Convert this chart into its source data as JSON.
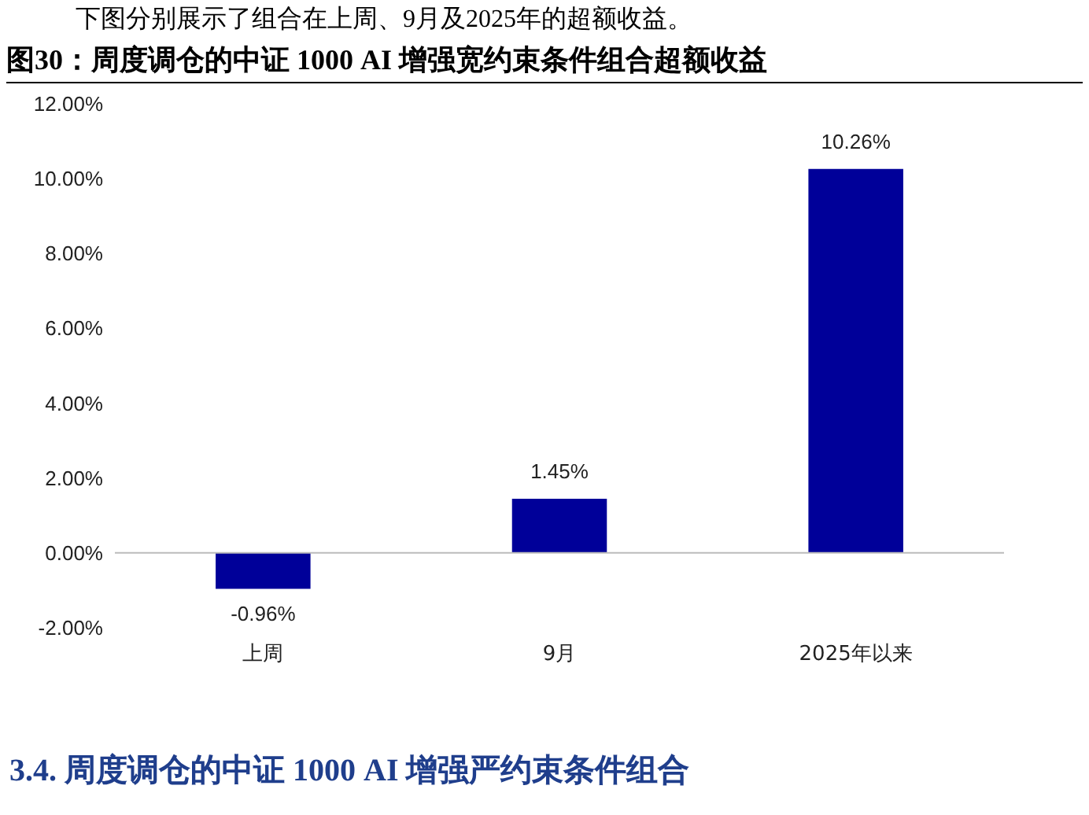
{
  "chart_data": {
    "type": "bar",
    "title": "图30：周度调仓的中证 1000 AI 增强宽约束条件组合超额收益",
    "categories": [
      "上周",
      "9月",
      "2025年以来"
    ],
    "values": [
      -0.96,
      1.45,
      10.26
    ],
    "value_labels": [
      "-0.96%",
      "1.45%",
      "10.26%"
    ],
    "color": "#000099",
    "ylim": [
      -2,
      12
    ],
    "yticks": [
      {
        "value": -2,
        "label": "-2.00%"
      },
      {
        "value": 0,
        "label": "0.00%"
      },
      {
        "value": 2,
        "label": "2.00%"
      },
      {
        "value": 4,
        "label": "4.00%"
      },
      {
        "value": 6,
        "label": "6.00%"
      },
      {
        "value": 8,
        "label": "8.00%"
      },
      {
        "value": 10,
        "label": "10.00%"
      },
      {
        "value": 12,
        "label": "12.00%"
      }
    ],
    "annotations": [
      "下图分别展示了组合在上周、9月及2025年的超额收益。",
      "3.4.  周度调仓的中证 1000 AI 增强严约束条件组合"
    ]
  }
}
